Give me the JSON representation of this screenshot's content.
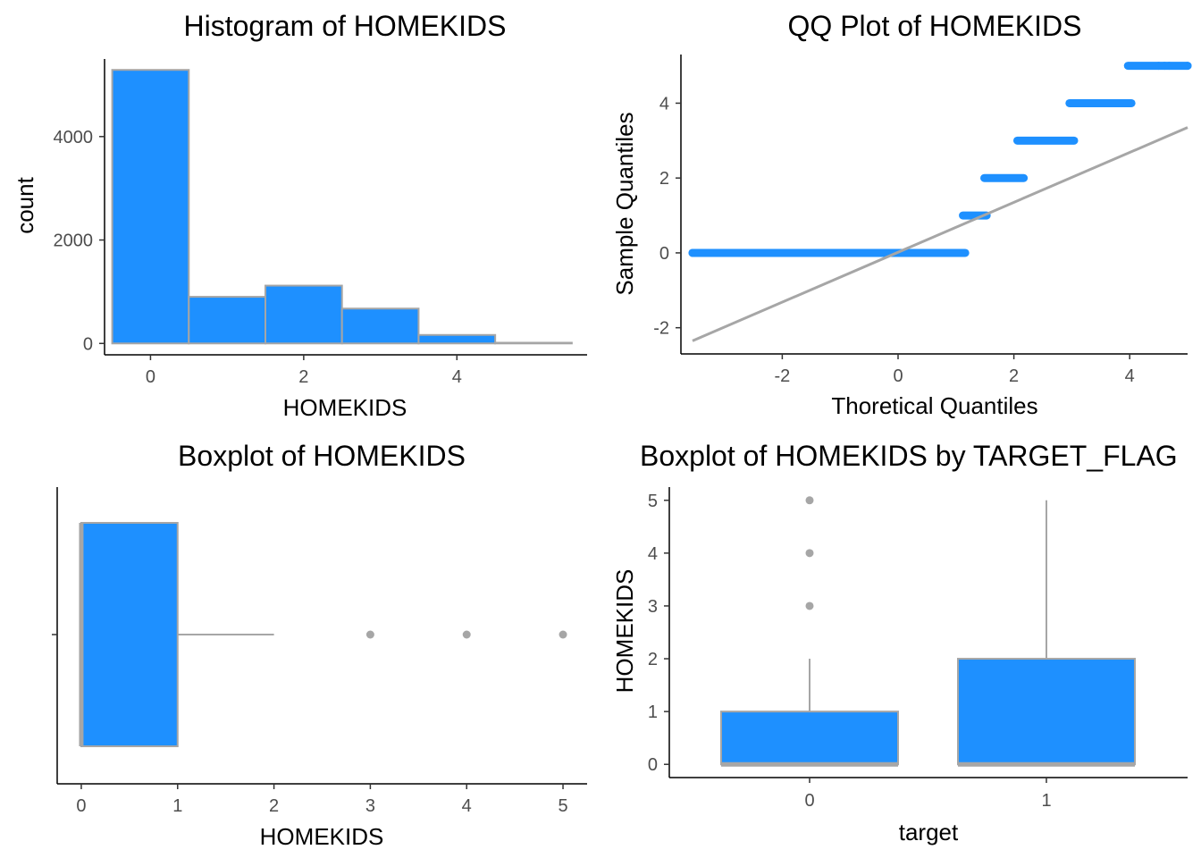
{
  "colors": {
    "fill": "#1E90FF",
    "stroke": "#A6A6A6",
    "axis": "#000000",
    "tick_text": "#4d4d4d"
  },
  "chart_data": [
    {
      "type": "bar",
      "title": "Histogram of HOMEKIDS",
      "xlabel": "HOMEKIDS",
      "ylabel": "count",
      "categories": [
        "0",
        "1",
        "2",
        "3",
        "4",
        "5"
      ],
      "values": [
        5289,
        902,
        1118,
        674,
        164,
        14
      ],
      "bin_width": 1,
      "xlim": [
        -0.6,
        5.7
      ],
      "ylim": [
        -220,
        5500
      ],
      "xticks": [
        0,
        2,
        4
      ],
      "yticks": [
        0,
        2000,
        4000
      ],
      "grid": false
    },
    {
      "type": "scatter",
      "title": "QQ Plot of HOMEKIDS",
      "xlabel": "Thoretical Quantiles",
      "ylabel": "Sample Quantiles",
      "xlim": [
        -3.75,
        5.0
      ],
      "ylim": [
        -2.7,
        5.3
      ],
      "xticks": [
        -2,
        0,
        2,
        4
      ],
      "yticks": [
        -2,
        0,
        2,
        4
      ],
      "steps": [
        {
          "y": 0,
          "x_from": -3.55,
          "x_to": 1.16
        },
        {
          "y": 1,
          "x_from": 1.12,
          "x_to": 1.53
        },
        {
          "y": 2,
          "x_from": 1.49,
          "x_to": 2.17
        },
        {
          "y": 3,
          "x_from": 2.06,
          "x_to": 3.04
        },
        {
          "y": 4,
          "x_from": 2.96,
          "x_to": 4.03
        },
        {
          "y": 5,
          "x_from": 3.97,
          "x_to": 5.0
        }
      ],
      "tail_points": [
        {
          "x": -3.55,
          "y": 0
        },
        {
          "x": -3.25,
          "y": 0
        },
        {
          "x": -3.12,
          "y": 0
        },
        {
          "x": -3.03,
          "y": 0
        },
        {
          "x": 4.5,
          "y": 5
        },
        {
          "x": 4.6,
          "y": 5
        },
        {
          "x": 4.68,
          "y": 5
        },
        {
          "x": 5.0,
          "y": 5
        }
      ],
      "reference_line": {
        "x": [
          -3.55,
          5.0
        ],
        "y": [
          -2.35,
          3.35
        ]
      },
      "grid": false
    },
    {
      "type": "boxplot",
      "title": "Boxplot of HOMEKIDS",
      "xlabel": "HOMEKIDS",
      "ylabel": "",
      "orientation": "horizontal",
      "xlim": [
        -0.25,
        5.25
      ],
      "xticks": [
        0,
        1,
        2,
        3,
        4,
        5
      ],
      "box": {
        "min": 0,
        "q1": 0,
        "median": 0,
        "q3": 1,
        "max": 2
      },
      "outliers": [
        3,
        4,
        5
      ],
      "grid": false
    },
    {
      "type": "boxplot",
      "title": "Boxplot of HOMEKIDS by TARGET_FLAG",
      "xlabel": "target",
      "ylabel": "HOMEKIDS",
      "orientation": "vertical",
      "categories": [
        "0",
        "1"
      ],
      "ylim": [
        -0.25,
        5.25
      ],
      "yticks": [
        0,
        1,
        2,
        3,
        4,
        5
      ],
      "boxes": [
        {
          "group": "0",
          "min": 0,
          "q1": 0,
          "median": 0,
          "q3": 1,
          "max": 2,
          "outliers": [
            3,
            4,
            5
          ]
        },
        {
          "group": "1",
          "min": 0,
          "q1": 0,
          "median": 0,
          "q3": 2,
          "max": 5,
          "outliers": []
        }
      ],
      "grid": false
    }
  ]
}
